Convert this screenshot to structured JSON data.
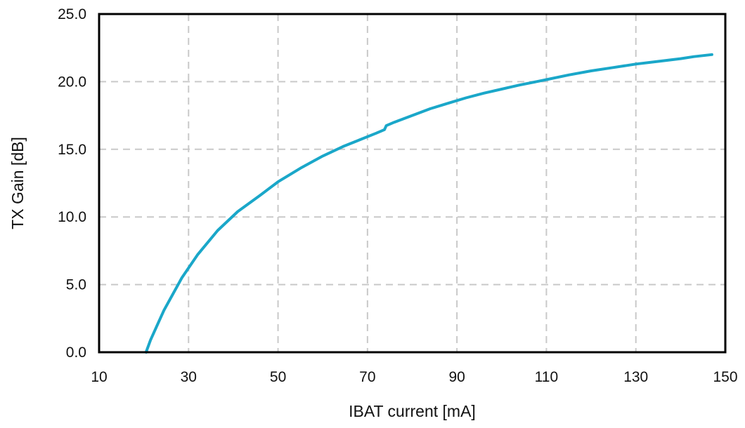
{
  "chart_data": {
    "type": "line",
    "title": "",
    "xlabel": "IBAT current [mA]",
    "ylabel": "TX Gain [dB]",
    "xlim": [
      10,
      150
    ],
    "ylim": [
      0,
      25
    ],
    "x_ticks": [
      "10",
      "30",
      "50",
      "70",
      "90",
      "110",
      "130",
      "150"
    ],
    "y_ticks": [
      "0.0",
      "5.0",
      "10.0",
      "15.0",
      "20.0",
      "25.0"
    ],
    "grid": true,
    "legend": "none",
    "series": [
      {
        "color": "#1aa7c9",
        "x": [
          20.5,
          21.5,
          23,
          24.5,
          26.5,
          28.5,
          32,
          36.5,
          41,
          46,
          50,
          55,
          60,
          64.5,
          69,
          72,
          73.8,
          74.2,
          76,
          80,
          84,
          88,
          92,
          96,
          100,
          104,
          110,
          115,
          120,
          125,
          130,
          135,
          140,
          143,
          147
        ],
        "y": [
          0.0,
          0.9,
          2.0,
          3.1,
          4.3,
          5.5,
          7.2,
          9.0,
          10.4,
          11.6,
          12.6,
          13.6,
          14.5,
          15.2,
          15.8,
          16.2,
          16.45,
          16.75,
          17.0,
          17.5,
          18.0,
          18.4,
          18.8,
          19.15,
          19.45,
          19.75,
          20.15,
          20.5,
          20.8,
          21.05,
          21.3,
          21.5,
          21.7,
          21.85,
          22.0
        ]
      }
    ]
  }
}
